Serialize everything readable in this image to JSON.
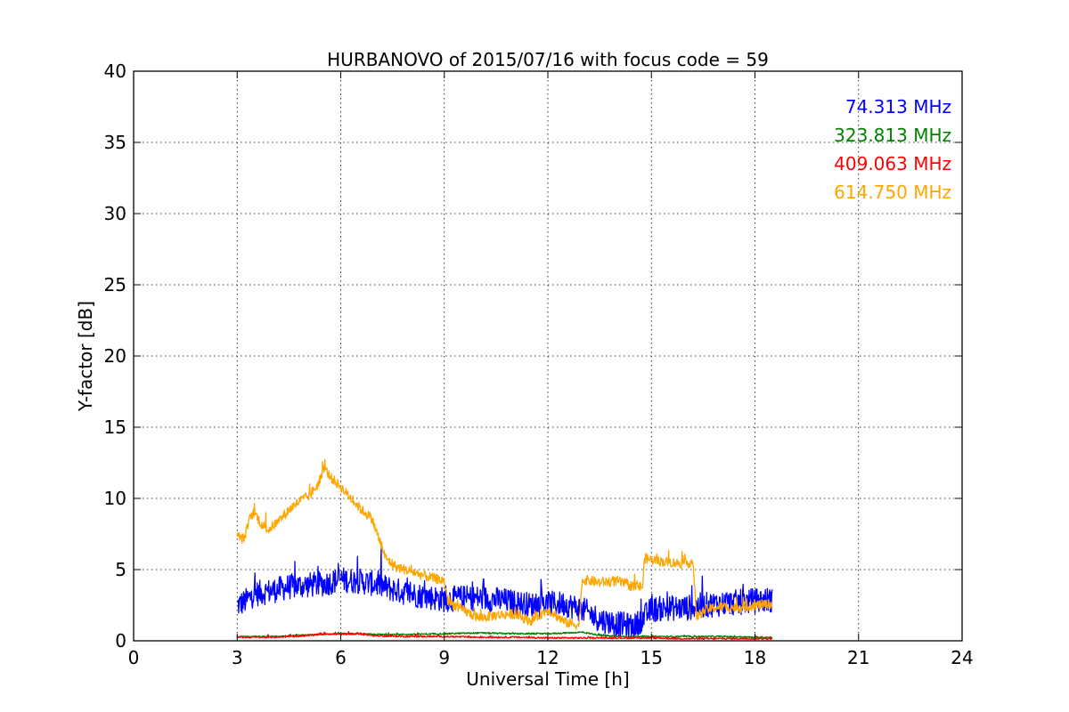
{
  "chart_data": {
    "type": "line",
    "title": "HURBANOVO of 2015/07/16 with focus code = 59",
    "xlabel": "Universal Time [h]",
    "ylabel": "Y-factor [dB]",
    "xlim": [
      0,
      24
    ],
    "ylim": [
      0,
      40
    ],
    "xticks": [
      0,
      3,
      6,
      9,
      12,
      15,
      18,
      21,
      24
    ],
    "yticks": [
      0,
      5,
      10,
      15,
      20,
      25,
      30,
      35,
      40
    ],
    "grid": true,
    "legend_position": "top-right",
    "series": [
      {
        "name": "74.313 MHz",
        "color": "#0000ff",
        "noise": 0.9,
        "x": [
          3.0,
          3.2,
          3.5,
          4.0,
          4.5,
          5.0,
          5.5,
          6.0,
          6.5,
          7.0,
          7.5,
          8.0,
          8.5,
          9.0,
          9.5,
          10.0,
          10.5,
          11.0,
          11.5,
          12.0,
          12.5,
          13.0,
          13.5,
          14.0,
          14.5,
          14.8,
          15.0,
          15.5,
          16.0,
          16.5,
          17.0,
          17.5,
          18.0,
          18.5
        ],
        "y": [
          2.5,
          2.7,
          3.3,
          3.5,
          3.8,
          3.9,
          4.0,
          4.3,
          4.2,
          4.0,
          3.6,
          3.3,
          3.1,
          2.9,
          3.0,
          3.0,
          2.9,
          2.7,
          2.5,
          2.6,
          2.6,
          2.2,
          1.5,
          1.2,
          1.0,
          1.7,
          2.2,
          2.3,
          2.3,
          2.5,
          2.6,
          2.7,
          2.8,
          2.9
        ]
      },
      {
        "name": "323.813 MHz",
        "color": "#008000",
        "noise": 0.05,
        "x": [
          3.0,
          4.0,
          5.0,
          6.0,
          7.0,
          8.0,
          9.0,
          10.0,
          11.0,
          12.0,
          13.0,
          13.5,
          14.0,
          15.0,
          16.0,
          17.0,
          18.0,
          18.5
        ],
        "y": [
          0.3,
          0.3,
          0.4,
          0.5,
          0.45,
          0.45,
          0.5,
          0.55,
          0.5,
          0.5,
          0.6,
          0.4,
          0.3,
          0.3,
          0.3,
          0.3,
          0.25,
          0.25
        ]
      },
      {
        "name": "409.063 MHz",
        "color": "#ff0000",
        "noise": 0.06,
        "x": [
          3.0,
          4.0,
          5.0,
          5.5,
          6.0,
          6.5,
          7.0,
          8.0,
          9.0,
          10.0,
          11.0,
          12.0,
          13.0,
          14.0,
          15.0,
          16.0,
          17.0,
          18.0,
          18.5
        ],
        "y": [
          0.25,
          0.25,
          0.35,
          0.5,
          0.45,
          0.5,
          0.35,
          0.3,
          0.3,
          0.25,
          0.25,
          0.2,
          0.2,
          0.2,
          0.2,
          0.15,
          0.15,
          0.15,
          0.15
        ]
      },
      {
        "name": "614.750 MHz",
        "color": "#ffa500",
        "noise": 0.35,
        "x": [
          3.0,
          3.1,
          3.2,
          3.4,
          3.5,
          3.7,
          3.9,
          4.2,
          4.5,
          4.8,
          5.1,
          5.4,
          5.5,
          5.7,
          6.0,
          6.3,
          6.6,
          6.9,
          7.1,
          7.3,
          7.6,
          8.0,
          8.5,
          9.0,
          9.1,
          9.5,
          10.0,
          10.5,
          11.0,
          11.5,
          12.0,
          12.5,
          12.9,
          13.0,
          13.5,
          14.0,
          14.5,
          14.75,
          14.8,
          15.2,
          15.6,
          16.0,
          16.2,
          16.3,
          16.6,
          17.0,
          17.5,
          18.0,
          18.5
        ],
        "y": [
          7.4,
          7.2,
          7.2,
          8.8,
          9.0,
          8.2,
          7.8,
          8.4,
          9.2,
          9.8,
          10.2,
          11.2,
          12.2,
          11.5,
          10.8,
          10.0,
          9.2,
          8.6,
          7.2,
          5.8,
          5.2,
          4.9,
          4.5,
          4.2,
          2.8,
          2.2,
          1.6,
          1.8,
          1.9,
          1.4,
          2.2,
          1.3,
          1.1,
          4.3,
          4.1,
          4.2,
          3.8,
          3.8,
          5.8,
          5.6,
          5.5,
          5.4,
          5.6,
          1.7,
          2.2,
          2.4,
          2.3,
          2.5,
          2.6
        ]
      }
    ]
  }
}
